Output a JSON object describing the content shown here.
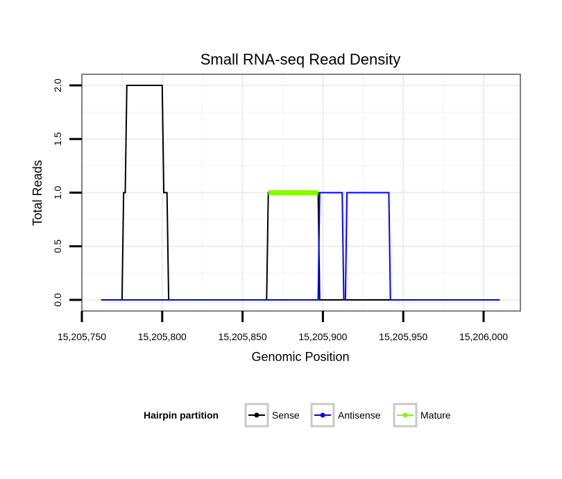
{
  "chart_data": {
    "type": "line",
    "title": "Small RNA-seq Read Density",
    "xlabel": "Genomic Position",
    "ylabel": "Total Reads",
    "xlim": [
      15205750,
      15206010
    ],
    "ylim": [
      0,
      2
    ],
    "x_ticks": [
      15205750,
      15205800,
      15205850,
      15205900,
      15205950,
      15206000
    ],
    "x_tick_labels": [
      "15,205,750",
      "15,205,800",
      "15,205,850",
      "15,205,900",
      "15,205,950",
      "15,206,000"
    ],
    "y_ticks": [
      0,
      0.5,
      1,
      1.5,
      2
    ],
    "y_tick_labels": [
      "0.0",
      "0.5",
      "1.0",
      "1.5",
      "2.0"
    ],
    "grid": true,
    "legend": {
      "title": "Hairpin partition",
      "position": "bottom",
      "entries": [
        "Sense",
        "Antisense",
        "Mature"
      ]
    },
    "series": [
      {
        "name": "Sense",
        "color": "#000000",
        "x": [
          15205762,
          15205775,
          15205776,
          15205777,
          15205778,
          15205800,
          15205801,
          15205803,
          15205804,
          15205865,
          15205866,
          15205897,
          15205898,
          15205913,
          15205914,
          15206010
        ],
        "y": [
          0,
          0,
          1,
          1,
          2,
          2,
          1,
          1,
          0,
          0,
          1,
          1,
          0,
          0,
          0,
          0
        ]
      },
      {
        "name": "Antisense",
        "color": "#0000ff",
        "x": [
          15205762,
          15205897,
          15205898,
          15205912,
          15205913,
          15205914,
          15205915,
          15205941,
          15205942,
          15206010
        ],
        "y": [
          0,
          0,
          1,
          1,
          0,
          0,
          1,
          1,
          0,
          0
        ]
      },
      {
        "name": "Mature",
        "color": "#7fff00",
        "x": [
          15205866,
          15205897
        ],
        "y": [
          1,
          1
        ]
      }
    ]
  }
}
